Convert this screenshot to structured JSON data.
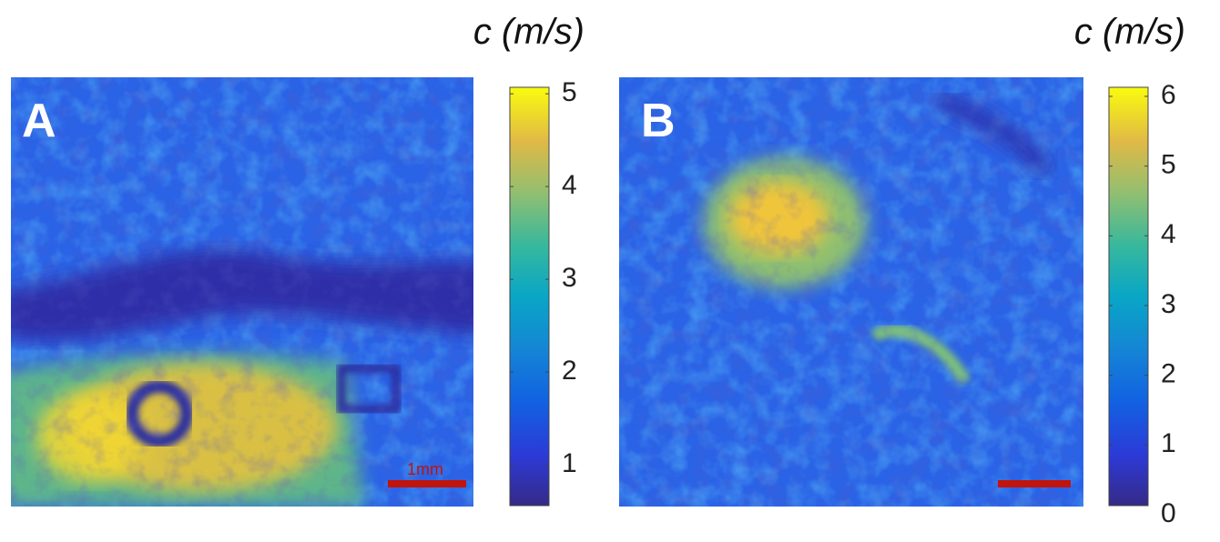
{
  "panels": [
    {
      "label": "A",
      "scale_bar_label": "1mm",
      "colorbar": {
        "title": "c (m/s)",
        "lim": [
          0.56,
          5.07
        ],
        "ticks": [
          1,
          2,
          3,
          4,
          5
        ]
      }
    },
    {
      "label": "B",
      "colorbar": {
        "title": "c (m/s)",
        "lim": [
          0.13,
          6.13
        ],
        "ticks": [
          0,
          1,
          2,
          3,
          4,
          5,
          6
        ]
      }
    }
  ]
}
